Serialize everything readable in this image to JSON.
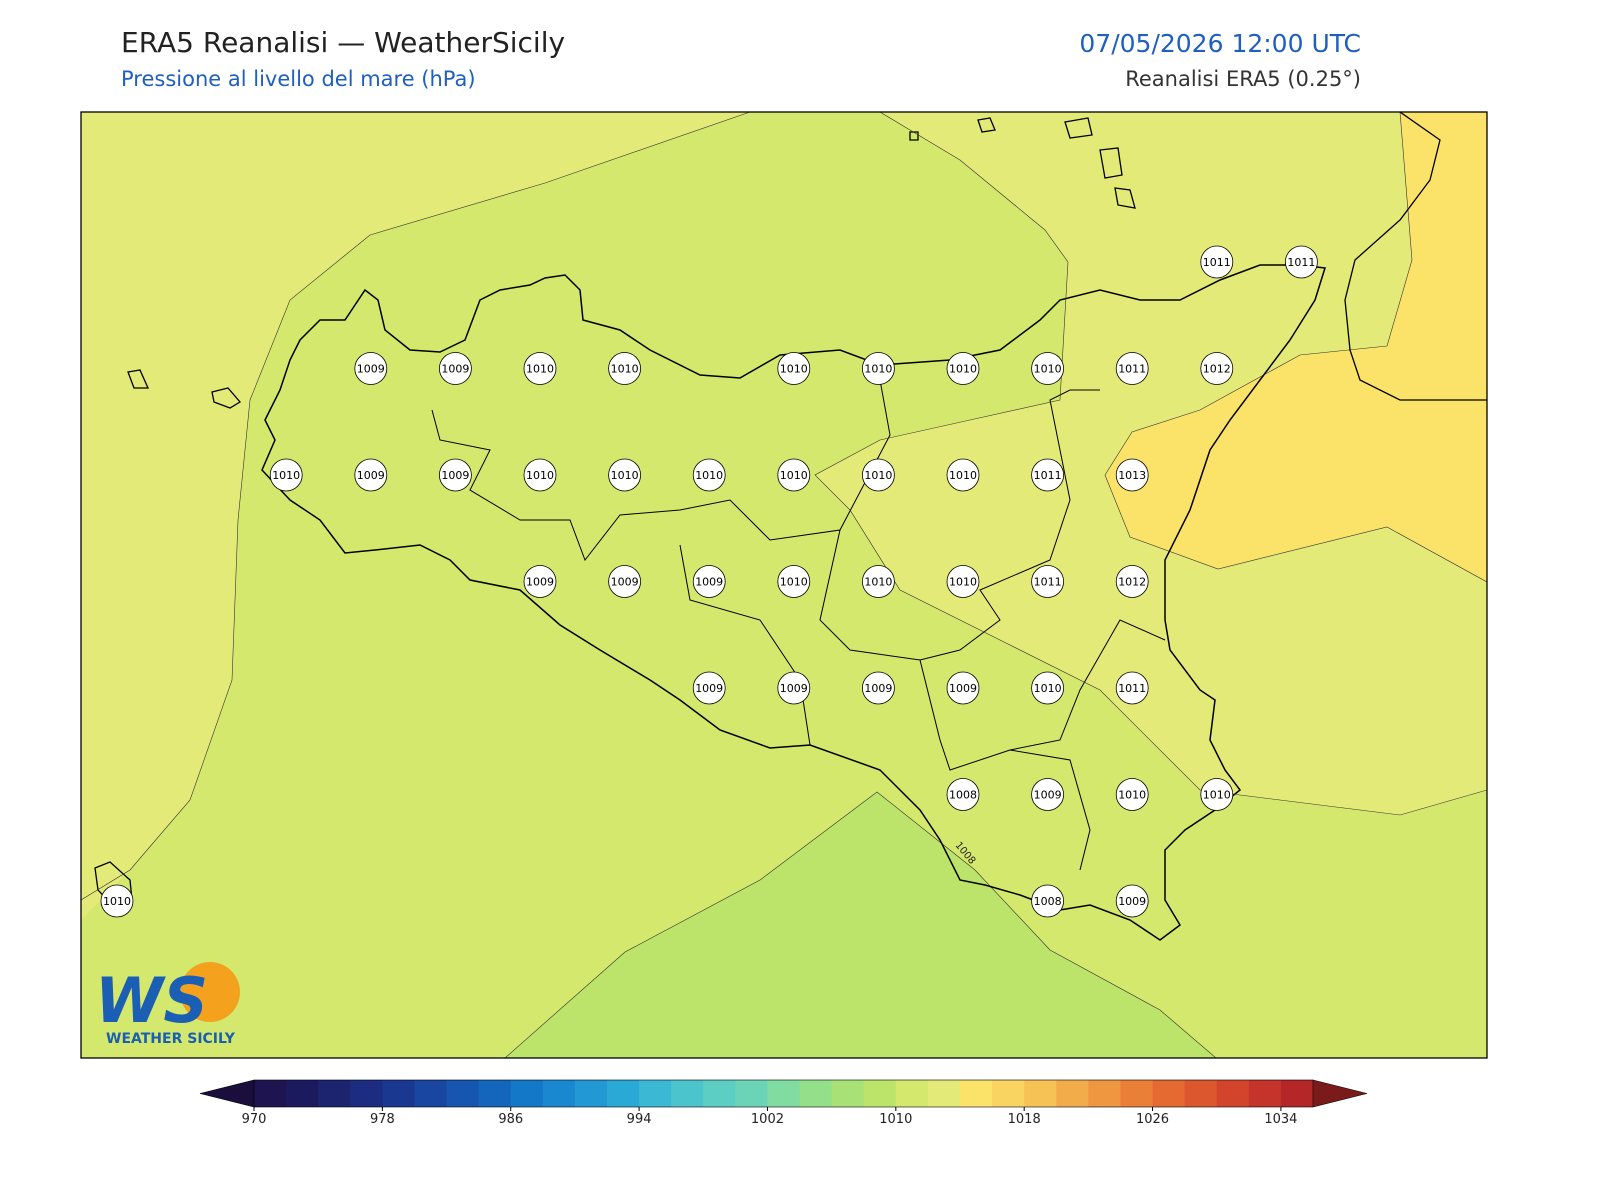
{
  "header": {
    "title": "ERA5 Reanalisi — WeatherSicily",
    "subtitle": "Pressione al livello del mare (hPa)",
    "datetime": "07/05/2026 12:00 UTC",
    "source": "Reanalisi ERA5 (0.25°)"
  },
  "stations": {
    "rows": [
      [
        null,
        null,
        null,
        null,
        null,
        null,
        null,
        null,
        null,
        null,
        null,
        null,
        null,
        1011,
        1011
      ],
      [
        null,
        null,
        null,
        1009,
        1009,
        1010,
        1010,
        null,
        1010,
        1010,
        1010,
        1010,
        1011,
        1012,
        null
      ],
      [
        null,
        null,
        1010,
        1009,
        1009,
        1010,
        1010,
        1010,
        1010,
        1010,
        1010,
        1011,
        1013,
        null,
        null
      ],
      [
        null,
        null,
        null,
        null,
        null,
        1009,
        1009,
        1009,
        1010,
        1010,
        1010,
        1011,
        1012,
        null,
        null
      ],
      [
        null,
        null,
        null,
        null,
        null,
        null,
        null,
        1009,
        1009,
        1009,
        1009,
        1010,
        1011,
        null,
        null
      ],
      [
        null,
        null,
        null,
        null,
        null,
        null,
        null,
        null,
        null,
        null,
        1008,
        1009,
        1010,
        1010,
        null
      ],
      [
        1010,
        null,
        null,
        null,
        null,
        null,
        null,
        null,
        null,
        null,
        null,
        1008,
        1009,
        null,
        null
      ]
    ]
  },
  "contour_label": "1008",
  "colorbar": {
    "min": 970,
    "max": 1036,
    "step": 2,
    "ticks": [
      970,
      978,
      986,
      994,
      1002,
      1010,
      1018,
      1026,
      1034
    ],
    "colors": [
      "#1e1450",
      "#1c1a5e",
      "#1c2470",
      "#1c2c80",
      "#1a3890",
      "#1846a0",
      "#1656b0",
      "#1466bd",
      "#1478c8",
      "#1a88d0",
      "#2298d4",
      "#2aa8d6",
      "#3ab8d4",
      "#4cc4cc",
      "#5ccec4",
      "#6cd4b6",
      "#80dca0",
      "#94e08a",
      "#a8e276",
      "#bde46a",
      "#d3e86c",
      "#e4ea77",
      "#fbe36a",
      "#f9d460",
      "#f6c255",
      "#f2ac4a",
      "#ee9640",
      "#ea8038",
      "#e46a32",
      "#dc562e",
      "#d2442c",
      "#c4342a",
      "#b42628"
    ],
    "under": "#1a0e3c",
    "over": "#7a1a1a"
  },
  "logo": {
    "mark": "WS",
    "text": "WEATHER SICILY"
  }
}
